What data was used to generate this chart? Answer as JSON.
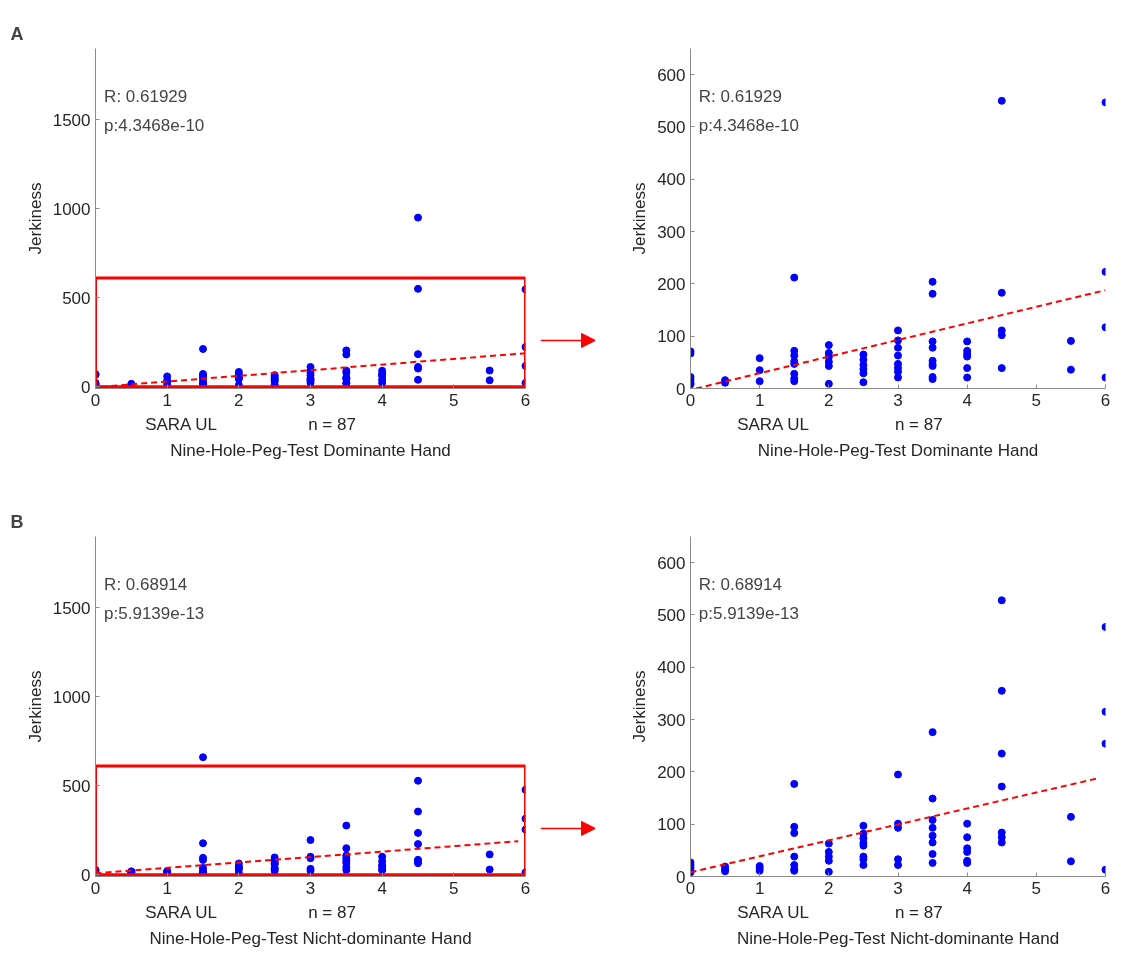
{
  "chart_data": [
    {
      "type": "scatter",
      "title": "A",
      "xlabel": "Nine-Hole-Peg-Test Dominante Hand",
      "ylabel": "Jerkiness",
      "xlim": [
        0,
        6
      ],
      "ylim": [
        -10,
        1900
      ],
      "xticks": [
        0,
        1,
        2,
        3,
        4,
        5,
        6
      ],
      "yticks": [
        0,
        500,
        1000,
        1500
      ],
      "annotations": [
        "R: 0.61929",
        "p:4.3468e-10",
        "SARA UL",
        "n = 87"
      ],
      "series": [
        {
          "marker": "circle",
          "color": "#0000ff",
          "x": [
            0,
            0,
            0,
            0,
            0,
            0,
            0.5,
            0.5,
            1,
            1,
            1,
            1.5,
            1.5,
            1.5,
            1.5,
            1.5,
            1.5,
            1.5,
            1.5,
            2,
            2,
            2,
            2,
            2,
            2,
            2.5,
            2.5,
            2.5,
            2.5,
            2.5,
            2.5,
            3,
            3,
            3,
            3,
            3,
            3,
            3,
            3,
            3.5,
            3.5,
            3.5,
            3.5,
            3.5,
            3.5,
            3.5,
            3.5,
            3.5,
            4,
            4,
            4,
            4,
            4,
            4,
            4.5,
            4.5,
            4.5,
            4.5,
            4.5,
            4.5,
            5.5,
            5.5,
            6,
            6,
            6,
            6
          ],
          "values": [
            71,
            67,
            22,
            17,
            11,
            8,
            16,
            11,
            58,
            35,
            14,
            212,
            72,
            63,
            52,
            47,
            28,
            19,
            14,
            83,
            68,
            60,
            51,
            43,
            9,
            65,
            55,
            45,
            37,
            29,
            12,
            111,
            92,
            78,
            63,
            47,
            39,
            32,
            21,
            204,
            181,
            90,
            78,
            53,
            47,
            43,
            22,
            18,
            90,
            72,
            66,
            61,
            39,
            21,
            950,
            550,
            183,
            111,
            102,
            39,
            91,
            36,
            547,
            223,
            117,
            21
          ]
        },
        {
          "type": "line",
          "color": "#ff0000",
          "line_style": "dashed",
          "x": [
            0.08,
            6
          ],
          "values": [
            0,
            188
          ]
        }
      ]
    },
    {
      "type": "scatter",
      "xlabel": "Nine-Hole-Peg-Test Dominante Hand",
      "ylabel": "Jerkiness",
      "xlim": [
        0,
        6
      ],
      "ylim": [
        0,
        650
      ],
      "xticks": [
        0,
        1,
        2,
        3,
        4,
        5,
        6
      ],
      "yticks": [
        0,
        100,
        200,
        300,
        400,
        500,
        600
      ],
      "annotations": [
        "R: 0.61929",
        "p:4.3468e-10",
        "SARA UL",
        "n = 87"
      ],
      "series": [
        {
          "marker": "circle",
          "color": "#0000ff",
          "x": [
            0,
            0,
            0,
            0,
            0,
            0,
            0.5,
            0.5,
            1,
            1,
            1,
            1.5,
            1.5,
            1.5,
            1.5,
            1.5,
            1.5,
            1.5,
            1.5,
            2,
            2,
            2,
            2,
            2,
            2,
            2.5,
            2.5,
            2.5,
            2.5,
            2.5,
            2.5,
            3,
            3,
            3,
            3,
            3,
            3,
            3,
            3,
            3.5,
            3.5,
            3.5,
            3.5,
            3.5,
            3.5,
            3.5,
            3.5,
            3.5,
            4,
            4,
            4,
            4,
            4,
            4,
            4.5,
            4.5,
            4.5,
            4.5,
            4.5,
            5.5,
            5.5,
            6,
            6,
            6,
            6
          ],
          "values": [
            71,
            67,
            22,
            17,
            11,
            8,
            16,
            11,
            58,
            35,
            14,
            212,
            72,
            63,
            52,
            47,
            28,
            19,
            14,
            83,
            68,
            60,
            51,
            43,
            9,
            65,
            55,
            45,
            37,
            29,
            12,
            111,
            92,
            78,
            63,
            47,
            39,
            32,
            21,
            204,
            181,
            90,
            78,
            53,
            47,
            43,
            22,
            18,
            90,
            72,
            66,
            61,
            39,
            21,
            550,
            183,
            111,
            102,
            39,
            91,
            36,
            547,
            223,
            117,
            21
          ]
        },
        {
          "type": "line",
          "color": "#ff0000",
          "line_style": "dashed",
          "x": [
            0.08,
            6
          ],
          "values": [
            0,
            188
          ]
        }
      ]
    },
    {
      "type": "scatter",
      "title": "B",
      "xlabel": "Nine-Hole-Peg-Test Nicht-dominante Hand",
      "ylabel": "Jerkiness",
      "xlim": [
        0,
        6
      ],
      "ylim": [
        -10,
        1900
      ],
      "xticks": [
        0,
        1,
        2,
        3,
        4,
        5,
        6
      ],
      "yticks": [
        0,
        500,
        1000,
        1500
      ],
      "annotations": [
        "R: 0.68914",
        "p:5.9139e-13",
        "SARA UL",
        "n = 87"
      ],
      "series": [
        {
          "marker": "circle",
          "color": "#0000ff",
          "x": [
            0,
            0,
            0.5,
            0.5,
            0.5,
            1,
            1,
            1,
            1.5,
            1.5,
            1.5,
            1.5,
            1.5,
            1.5,
            1.5,
            1.5,
            2,
            2,
            2,
            2,
            2,
            2.5,
            2.5,
            2.5,
            2.5,
            2.5,
            2.5,
            2.5,
            2.5,
            3,
            3,
            3,
            3,
            3,
            3.5,
            3.5,
            3.5,
            3.5,
            3.5,
            3.5,
            3.5,
            3.5,
            4,
            4,
            4,
            4,
            4,
            4,
            4.5,
            4.5,
            4.5,
            4.5,
            4.5,
            4.5,
            4.5,
            5.5,
            5.5,
            6,
            6,
            6,
            6
          ],
          "values": [
            27,
            22,
            19,
            14,
            10,
            20,
            16,
            11,
            660,
            177,
            95,
            83,
            38,
            22,
            14,
            11,
            63,
            47,
            38,
            30,
            9,
            97,
            82,
            73,
            64,
            59,
            38,
            33,
            22,
            195,
            101,
            93,
            33,
            22,
            276,
            149,
            108,
            93,
            78,
            65,
            43,
            26,
            101,
            75,
            54,
            47,
            30,
            26,
            528,
            355,
            235,
            172,
            84,
            75,
            65,
            114,
            29,
            477,
            315,
            254,
            13
          ]
        },
        {
          "type": "line",
          "color": "#ff0000",
          "line_style": "dashed",
          "x": [
            0,
            5.9
          ],
          "values": [
            8,
            188
          ]
        }
      ]
    },
    {
      "type": "scatter",
      "xlabel": "Nine-Hole-Peg-Test Nicht-dominante Hand",
      "ylabel": "Jerkiness",
      "xlim": [
        0,
        6
      ],
      "ylim": [
        0,
        650
      ],
      "xticks": [
        0,
        1,
        2,
        3,
        4,
        5,
        6
      ],
      "yticks": [
        0,
        100,
        200,
        300,
        400,
        500,
        600
      ],
      "annotations": [
        "R: 0.68914",
        "p:5.9139e-13",
        "SARA UL",
        "n = 87"
      ],
      "series": [
        {
          "marker": "circle",
          "color": "#0000ff",
          "x": [
            0,
            0,
            0,
            0,
            0,
            0.5,
            0.5,
            0.5,
            1,
            1,
            1,
            1.5,
            1.5,
            1.5,
            1.5,
            1.5,
            1.5,
            1.5,
            2,
            2,
            2,
            2,
            2,
            2.5,
            2.5,
            2.5,
            2.5,
            2.5,
            2.5,
            2.5,
            2.5,
            3,
            3,
            3,
            3,
            3,
            3.5,
            3.5,
            3.5,
            3.5,
            3.5,
            3.5,
            3.5,
            3.5,
            4,
            4,
            4,
            4,
            4,
            4,
            4.5,
            4.5,
            4.5,
            4.5,
            4.5,
            4.5,
            4.5,
            5.5,
            5.5,
            6,
            6,
            6,
            6
          ],
          "values": [
            27,
            22,
            17,
            12,
            8,
            19,
            14,
            10,
            20,
            16,
            11,
            177,
            95,
            83,
            38,
            22,
            14,
            11,
            63,
            47,
            38,
            30,
            9,
            97,
            82,
            73,
            64,
            59,
            38,
            33,
            22,
            195,
            101,
            93,
            33,
            22,
            276,
            149,
            108,
            93,
            78,
            65,
            43,
            26,
            101,
            75,
            54,
            47,
            30,
            26,
            528,
            355,
            235,
            172,
            84,
            75,
            65,
            114,
            29,
            477,
            315,
            254,
            13
          ]
        },
        {
          "type": "line",
          "color": "#ff0000",
          "line_style": "dashed",
          "x": [
            0,
            5.9
          ],
          "values": [
            8,
            188
          ]
        }
      ]
    }
  ]
}
